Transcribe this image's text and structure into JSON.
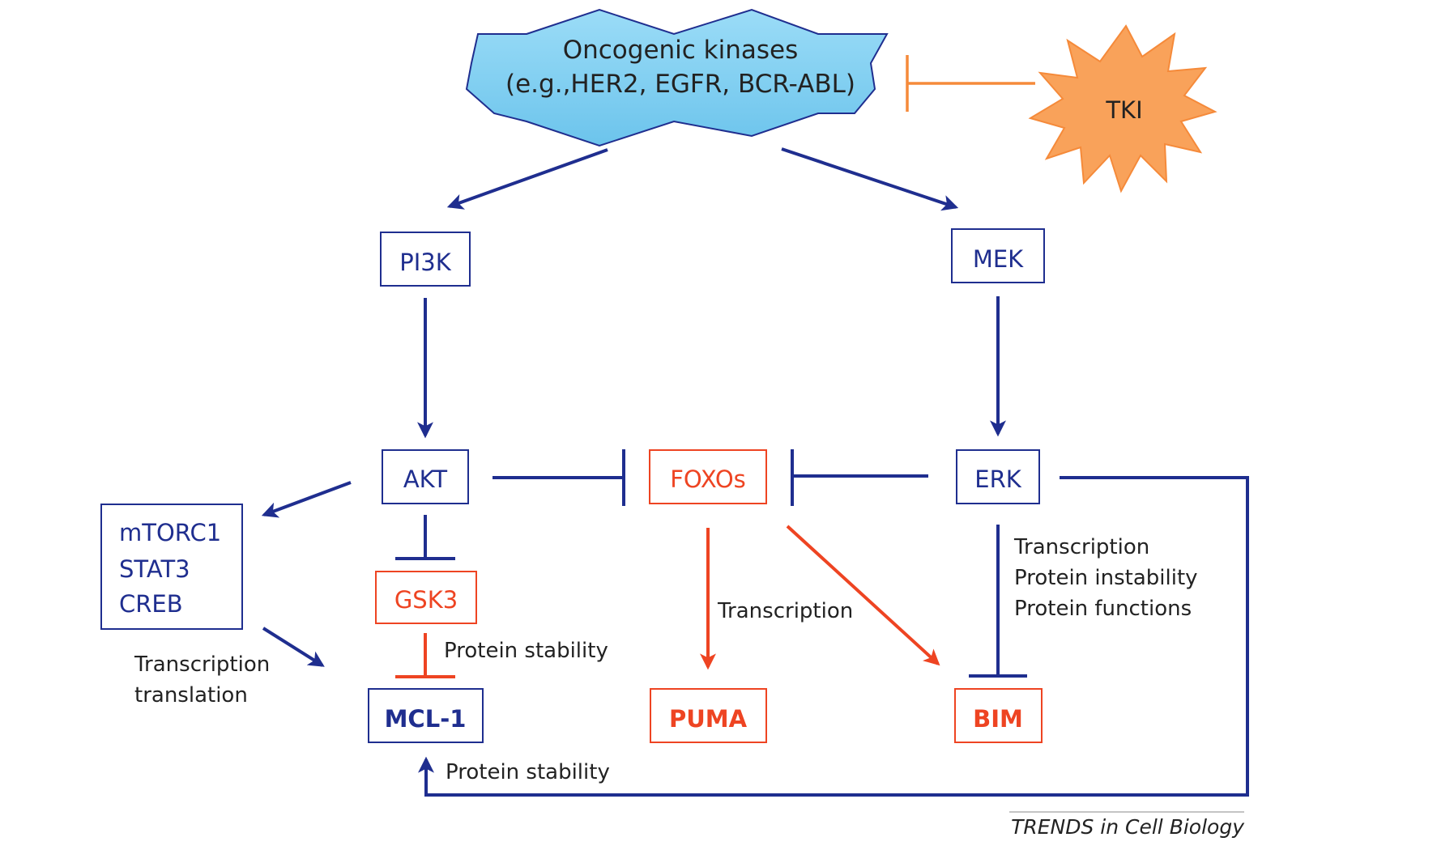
{
  "colors": {
    "blue": "#1f2e8f",
    "red": "#ee4422",
    "orange": "#f58a3a",
    "kinase_fill": "#86d3f3",
    "kinase_stroke": "#1f2e8f",
    "tki_fill": "#f9a25a",
    "tki_stroke": "#f58a3a",
    "text_dark": "#222222"
  },
  "nodes": {
    "kinases_line1": "Oncogenic kinases",
    "kinases_line2": "(e.g.,HER2, EGFR, BCR-ABL)",
    "tki": "TKI",
    "pi3k": "PI3K",
    "mek": "MEK",
    "akt": "AKT",
    "foxos": "FOXOs",
    "erk": "ERK",
    "gsk3": "GSK3",
    "mtorc1": "mTORC1",
    "stat3": "STAT3",
    "creb": "CREB",
    "mcl1": "MCL-1",
    "puma": "PUMA",
    "bim": "BIM"
  },
  "annotations": {
    "transcription_translation_1": "Transcription",
    "transcription_translation_2": "translation",
    "gsk3_protein_stability": "Protein stability",
    "foxo_transcription": "Transcription",
    "erk_effect_1": "Transcription",
    "erk_effect_2": "Protein instability",
    "erk_effect_3": "Protein functions",
    "erk_protein_stability": "Protein stability"
  },
  "footer": {
    "credit_italic": "TRENDS",
    "credit_rest": " in Cell Biology"
  }
}
